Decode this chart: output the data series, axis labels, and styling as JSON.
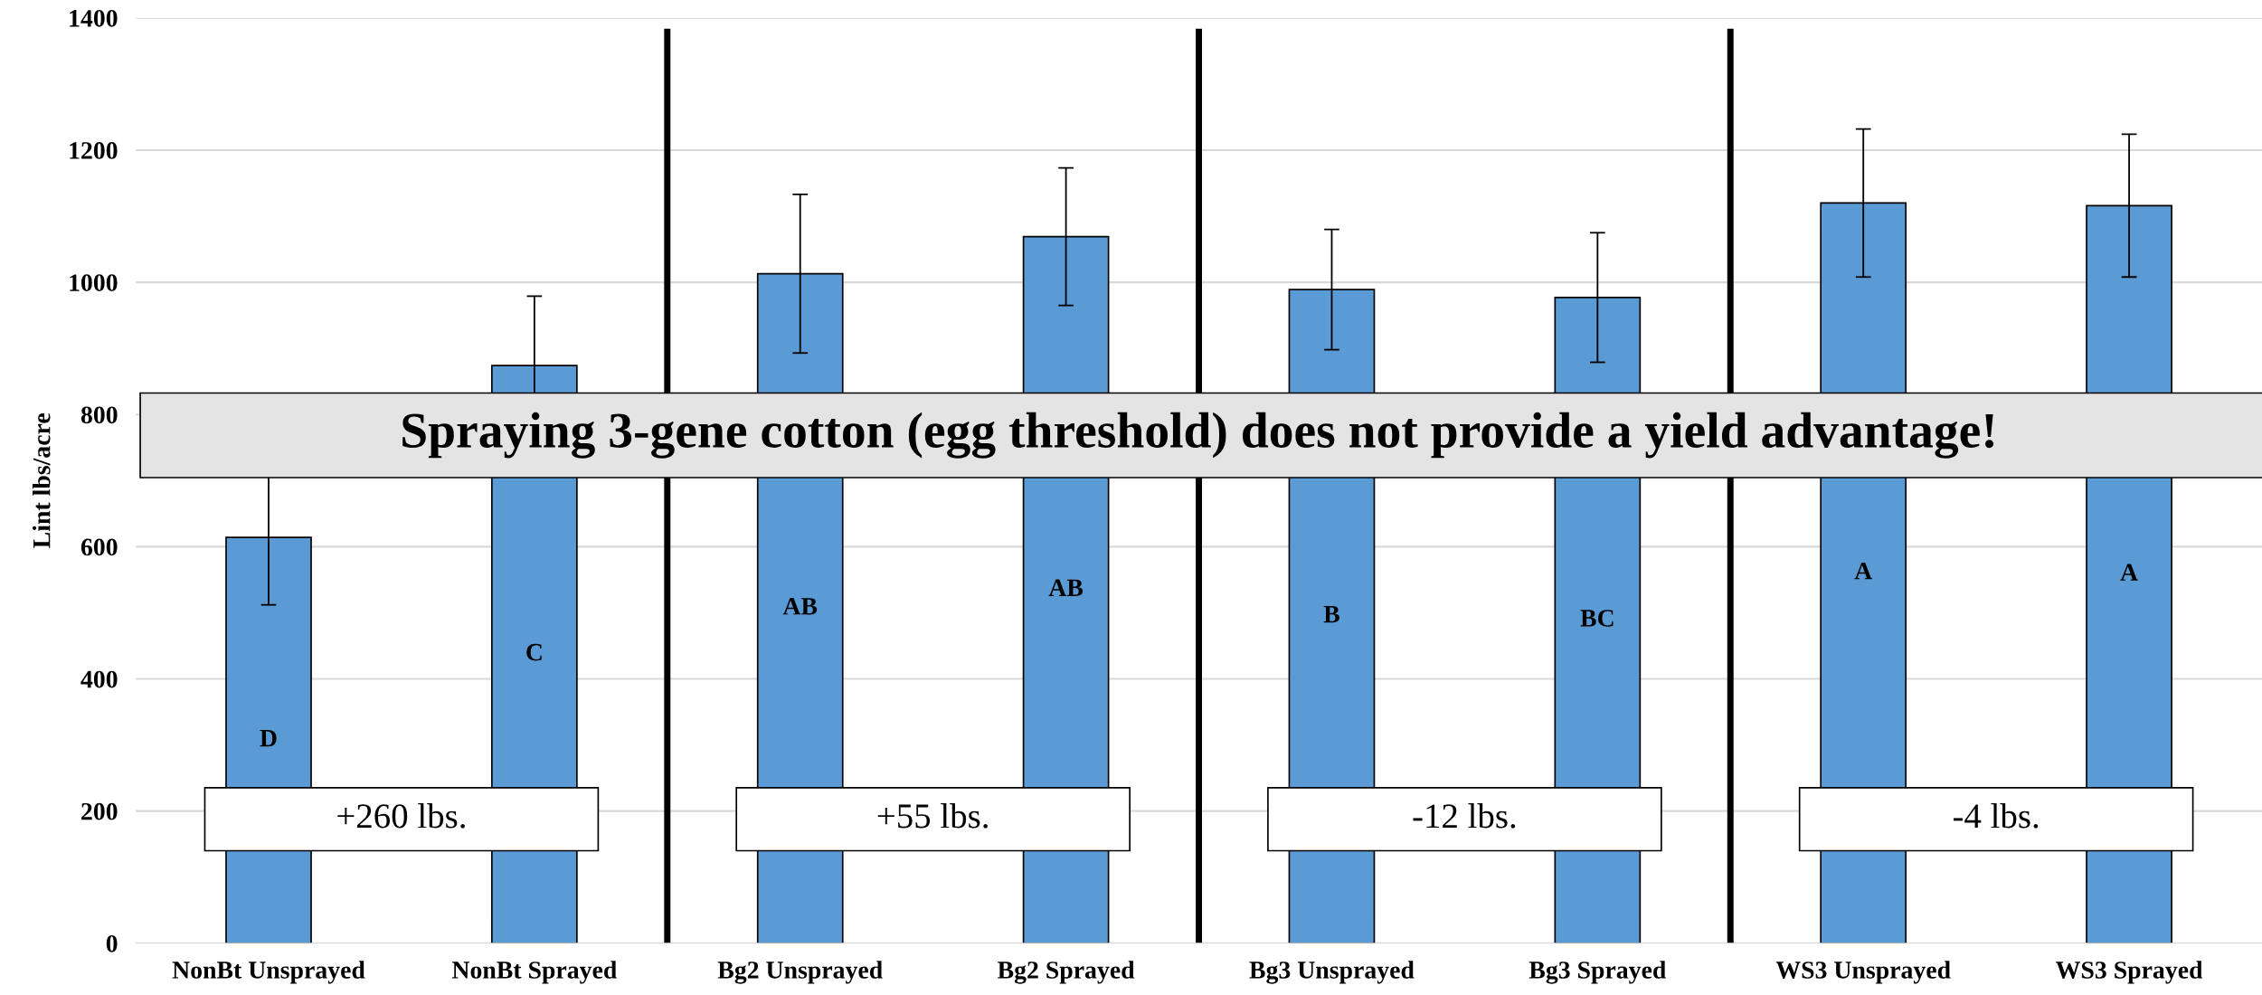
{
  "chart_data": {
    "type": "bar",
    "ylabel": "Lint lbs/acre",
    "categories": [
      "NonBt Unsprayed",
      "NonBt Sprayed",
      "Bg2 Unsprayed",
      "Bg2 Sprayed",
      "Bg3 Unsprayed",
      "Bg3 Sprayed",
      "WS3 Unsprayed",
      "WS3 Sprayed"
    ],
    "values": [
      614,
      874,
      1013,
      1069,
      989,
      977,
      1120,
      1116
    ],
    "errors": [
      102,
      105,
      120,
      104,
      91,
      98,
      112,
      108
    ],
    "color": "#5b9bd5",
    "ylim": [
      0,
      1400
    ],
    "yticks": [
      0,
      200,
      400,
      600,
      800,
      1000,
      1200,
      1400
    ],
    "grid": "y",
    "annotations": [
      "D",
      "C",
      "AB",
      "AB",
      "B",
      "BC",
      "A",
      "A",
      "+260 lbs.",
      "+55 lbs.",
      "-12 lbs.",
      "-4 lbs.",
      "Spraying 3-gene cotton (egg threshold) does not provide a yield advantage!"
    ]
  }
}
